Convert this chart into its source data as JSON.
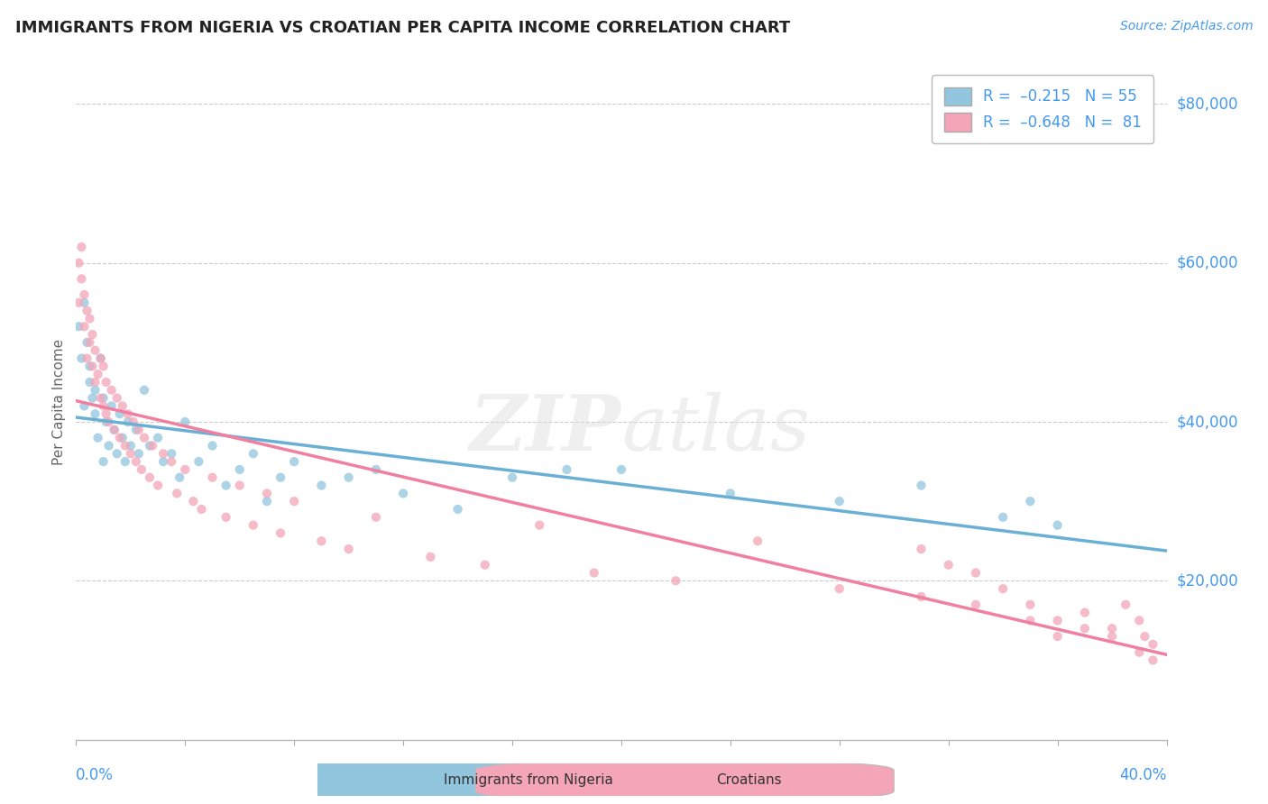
{
  "title": "IMMIGRANTS FROM NIGERIA VS CROATIAN PER CAPITA INCOME CORRELATION CHART",
  "source": "Source: ZipAtlas.com",
  "ylabel": "Per Capita Income",
  "color_nigeria": "#92C5DE",
  "color_croatia": "#F4A5B8",
  "color_nigeria_line": "#6AAFD4",
  "color_croatia_line": "#F080A0",
  "color_text_blue": "#4499EE",
  "background_color": "#FFFFFF",
  "xlim": [
    0.0,
    0.4
  ],
  "ylim": [
    0,
    85000
  ],
  "R_nigeria": -0.215,
  "R_croatia": -0.648,
  "N_nigeria": 55,
  "N_croatia": 81,
  "legend_label1": "Immigrants from Nigeria",
  "legend_label2": "Croatians",
  "nigeria_x": [
    0.001,
    0.002,
    0.003,
    0.003,
    0.004,
    0.005,
    0.005,
    0.006,
    0.007,
    0.007,
    0.008,
    0.009,
    0.01,
    0.01,
    0.011,
    0.012,
    0.013,
    0.014,
    0.015,
    0.016,
    0.017,
    0.018,
    0.019,
    0.02,
    0.022,
    0.023,
    0.025,
    0.027,
    0.03,
    0.032,
    0.035,
    0.038,
    0.04,
    0.045,
    0.05,
    0.055,
    0.06,
    0.065,
    0.07,
    0.075,
    0.08,
    0.09,
    0.1,
    0.11,
    0.12,
    0.14,
    0.16,
    0.18,
    0.2,
    0.24,
    0.28,
    0.31,
    0.34,
    0.35,
    0.36
  ],
  "nigeria_y": [
    52000,
    48000,
    55000,
    42000,
    50000,
    45000,
    47000,
    43000,
    44000,
    41000,
    38000,
    48000,
    35000,
    43000,
    40000,
    37000,
    42000,
    39000,
    36000,
    41000,
    38000,
    35000,
    40000,
    37000,
    39000,
    36000,
    44000,
    37000,
    38000,
    35000,
    36000,
    33000,
    40000,
    35000,
    37000,
    32000,
    34000,
    36000,
    30000,
    33000,
    35000,
    32000,
    33000,
    34000,
    31000,
    29000,
    33000,
    34000,
    34000,
    31000,
    30000,
    32000,
    28000,
    30000,
    27000
  ],
  "croatia_x": [
    0.001,
    0.001,
    0.002,
    0.002,
    0.003,
    0.003,
    0.004,
    0.004,
    0.005,
    0.005,
    0.006,
    0.006,
    0.007,
    0.007,
    0.008,
    0.009,
    0.009,
    0.01,
    0.01,
    0.011,
    0.011,
    0.012,
    0.013,
    0.014,
    0.015,
    0.016,
    0.017,
    0.018,
    0.019,
    0.02,
    0.021,
    0.022,
    0.023,
    0.024,
    0.025,
    0.027,
    0.028,
    0.03,
    0.032,
    0.035,
    0.037,
    0.04,
    0.043,
    0.046,
    0.05,
    0.055,
    0.06,
    0.065,
    0.07,
    0.075,
    0.08,
    0.09,
    0.1,
    0.11,
    0.13,
    0.15,
    0.17,
    0.19,
    0.22,
    0.25,
    0.28,
    0.31,
    0.33,
    0.35,
    0.36,
    0.37,
    0.38,
    0.385,
    0.39,
    0.392,
    0.395,
    0.31,
    0.32,
    0.33,
    0.34,
    0.35,
    0.36,
    0.37,
    0.38,
    0.39,
    0.395
  ],
  "croatia_y": [
    55000,
    60000,
    58000,
    62000,
    52000,
    56000,
    48000,
    54000,
    50000,
    53000,
    47000,
    51000,
    45000,
    49000,
    46000,
    43000,
    48000,
    42000,
    47000,
    41000,
    45000,
    40000,
    44000,
    39000,
    43000,
    38000,
    42000,
    37000,
    41000,
    36000,
    40000,
    35000,
    39000,
    34000,
    38000,
    33000,
    37000,
    32000,
    36000,
    35000,
    31000,
    34000,
    30000,
    29000,
    33000,
    28000,
    32000,
    27000,
    31000,
    26000,
    30000,
    25000,
    24000,
    28000,
    23000,
    22000,
    27000,
    21000,
    20000,
    25000,
    19000,
    18000,
    17000,
    15000,
    13000,
    16000,
    14000,
    17000,
    15000,
    13000,
    12000,
    24000,
    22000,
    21000,
    19000,
    17000,
    15000,
    14000,
    13000,
    11000,
    10000
  ]
}
